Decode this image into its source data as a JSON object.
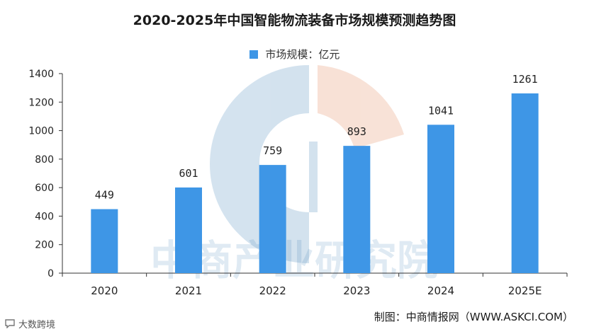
{
  "title": "2020-2025年中国智能物流装备市场规模预测趋势图",
  "legend_label": "市场规模：亿元",
  "source": "制图：中商情报网（WWW.ASKCI.COM）",
  "watermark": "中商产业研究院",
  "badge_text": "大数跨境",
  "colors": {
    "bar": "#3e96e6",
    "axis": "#333333",
    "grid": "#d8d8d8"
  },
  "chart_data": {
    "type": "bar",
    "title": "2020-2025年中国智能物流装备市场规模预测趋势图",
    "categories": [
      "2020",
      "2021",
      "2022",
      "2023",
      "2024",
      "2025E"
    ],
    "series": [
      {
        "name": "市场规模：亿元",
        "values": [
          449,
          601,
          759,
          893,
          1041,
          1261
        ]
      }
    ],
    "ylim": [
      0,
      1400
    ],
    "yticks": [
      0,
      200,
      400,
      600,
      800,
      1000,
      1200,
      1400
    ],
    "data_labels": [
      "449",
      "601",
      "759",
      "893",
      "1041",
      "1261"
    ],
    "legend_position": "top-center",
    "grid": false
  }
}
